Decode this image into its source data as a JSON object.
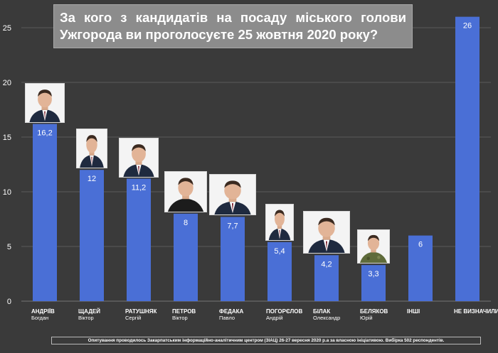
{
  "title": {
    "line1": "За кого з кандидатів на посаду міського голови",
    "line2": "Ужгорода ви проголосуєте 25 жовтня 2020 року?"
  },
  "footer": "Опитування проводилось Закарпатським інформаційно-аналітичним центром (ЗІАЦ) 26-27 вересня 2020 р.а за власною ініціативою. Вибірка 502 респондентів.",
  "colors": {
    "background": "#3a3a3a",
    "bar": "#4a6fd6",
    "grid": "#5a5a5a",
    "text": "#ffffff",
    "title_box": "#8c8c8c"
  },
  "chart_data": {
    "type": "bar",
    "categories": [
      {
        "surname": "АНДРІЇВ",
        "name": "Богдан"
      },
      {
        "surname": "ЩАДЕЙ",
        "name": "Віктор"
      },
      {
        "surname": "РАТУШНЯК",
        "name": "Сергій"
      },
      {
        "surname": "ПЕТРОВ",
        "name": "Віктор"
      },
      {
        "surname": "ФЕДАКА",
        "name": "Павло"
      },
      {
        "surname": "ПОГОРЄЛОВ",
        "name": "Андрій"
      },
      {
        "surname": "БІЛАК",
        "name": "Олександр"
      },
      {
        "surname": "БЕЛЯКОВ",
        "name": "Юрій"
      },
      {
        "surname": "ІНШІ",
        "name": ""
      },
      {
        "surname": "НЕ ВИЗНАЧИЛИСЯ",
        "name": ""
      }
    ],
    "values": [
      16.2,
      12,
      11.2,
      8,
      7.7,
      5.4,
      4.2,
      3.3,
      6,
      26
    ],
    "value_labels": [
      "16,2",
      "12",
      "11,2",
      "8",
      "7,7",
      "5,4",
      "4,2",
      "3,3",
      "6",
      "26"
    ],
    "has_photo": [
      true,
      true,
      true,
      true,
      true,
      true,
      true,
      true,
      false,
      false
    ],
    "photo_style": [
      "suit",
      "suit",
      "suit",
      "tshirt",
      "suit",
      "suit",
      "suit",
      "military",
      "",
      ""
    ],
    "ylim": [
      0,
      25
    ],
    "yticks": [
      0,
      5,
      10,
      15,
      20,
      25
    ],
    "grid": true,
    "legend": "none"
  }
}
